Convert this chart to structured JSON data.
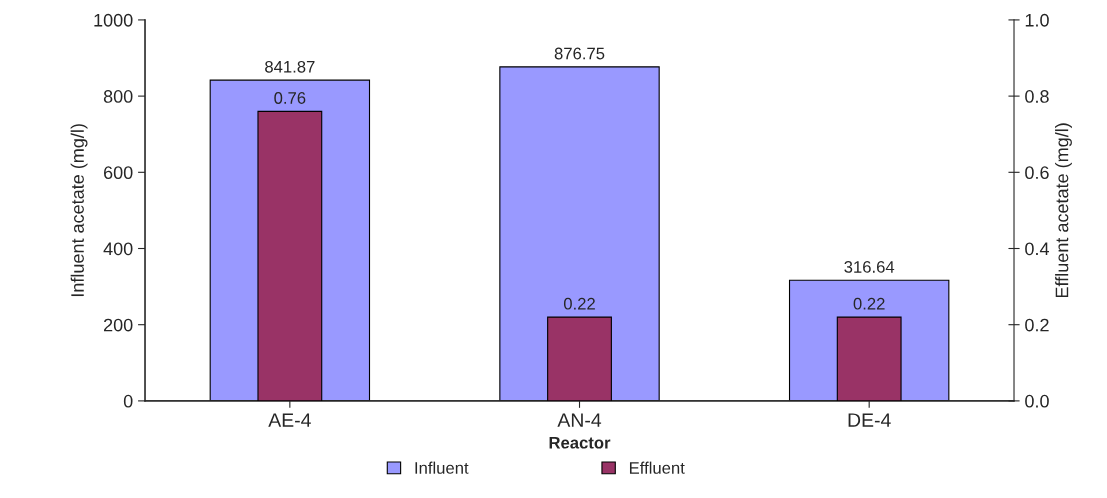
{
  "chart_data": {
    "type": "bar",
    "xlabel": "Reactor",
    "ylabel": "Influent acetate (mg/l)",
    "y2label": "Effluent acetate (mg/l)",
    "categories": [
      "AE-4",
      "AN-4",
      "DE-4"
    ],
    "series": [
      {
        "name": "Influent",
        "color": "#9999ff",
        "values": [
          841.87,
          876.75,
          316.64
        ]
      },
      {
        "name": "Effluent",
        "color": "#993366",
        "values": [
          0.76,
          0.22,
          0.22
        ],
        "axis": "y2"
      }
    ],
    "ylim": [
      0,
      1000
    ],
    "yticks": [
      0,
      200,
      400,
      600,
      800,
      1000
    ],
    "y2lim": [
      0,
      1.0
    ],
    "y2ticks": [
      {
        "value": 0,
        "label": "0.0"
      },
      {
        "value": 0.2,
        "label": "0.2"
      },
      {
        "value": 0.4,
        "label": "0.4"
      },
      {
        "value": 0.6,
        "label": "0.6"
      },
      {
        "value": 0.8,
        "label": "0.8"
      },
      {
        "value": 1.0,
        "label": "1.0"
      }
    ],
    "data_labels": true,
    "legend": "bottom",
    "grid": false
  }
}
